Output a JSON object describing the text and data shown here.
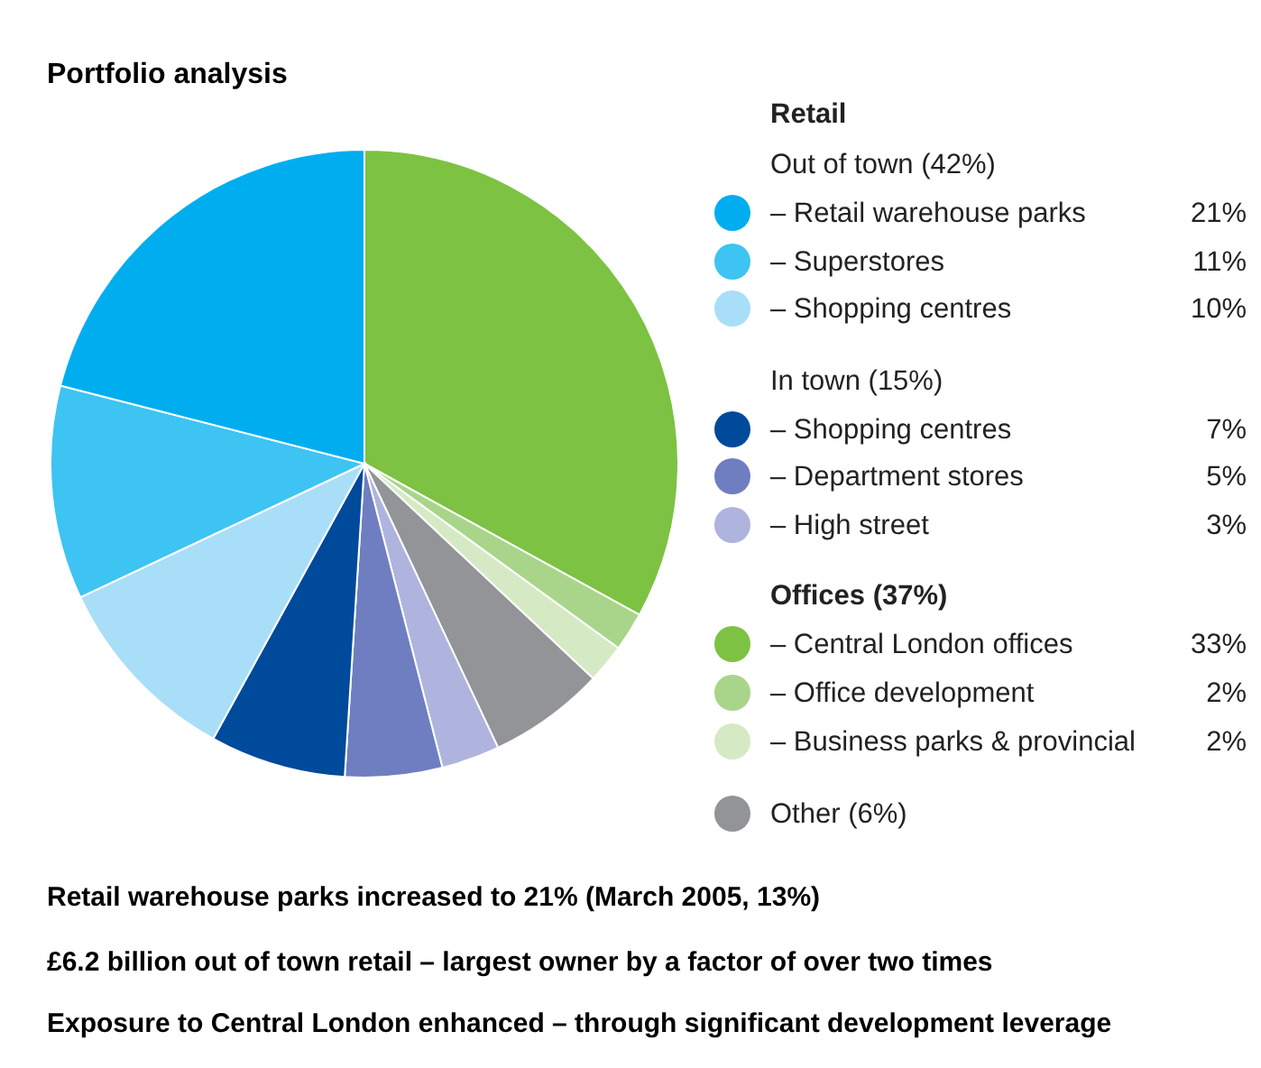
{
  "chart_data": {
    "type": "pie",
    "title": "Portfolio analysis",
    "categories": [
      "– Retail warehouse parks",
      "– Superstores",
      "– Shopping centres",
      "– Shopping centres",
      "– Department stores",
      "– High street",
      "– Central London offices",
      "– Office development",
      "– Business parks & provincial",
      "Other (6%)"
    ],
    "values": [
      21,
      11,
      10,
      7,
      5,
      3,
      33,
      2,
      2,
      6
    ],
    "colors": [
      "#00aeef",
      "#3dc4f2",
      "#a9def8",
      "#004a9c",
      "#6e7ec0",
      "#aeb4dd",
      "#7dc242",
      "#a8d58a",
      "#d5eac4",
      "#929497"
    ],
    "value_labels": [
      "21%",
      "11%",
      "10%",
      "7%",
      "5%",
      "3%",
      "33%",
      "2%",
      "2%",
      null
    ],
    "legend": "right",
    "annotations": [
      "Retail",
      "Out of town (42%)",
      "In town (15%)",
      "Offices (37%)",
      "Retail warehouse parks increased to 21% (March 2005, 13%)",
      "£6.2 billion out of town retail – largest owner by a factor of over two times",
      "Exposure to Central London enhanced – through significant development leverage"
    ]
  }
}
